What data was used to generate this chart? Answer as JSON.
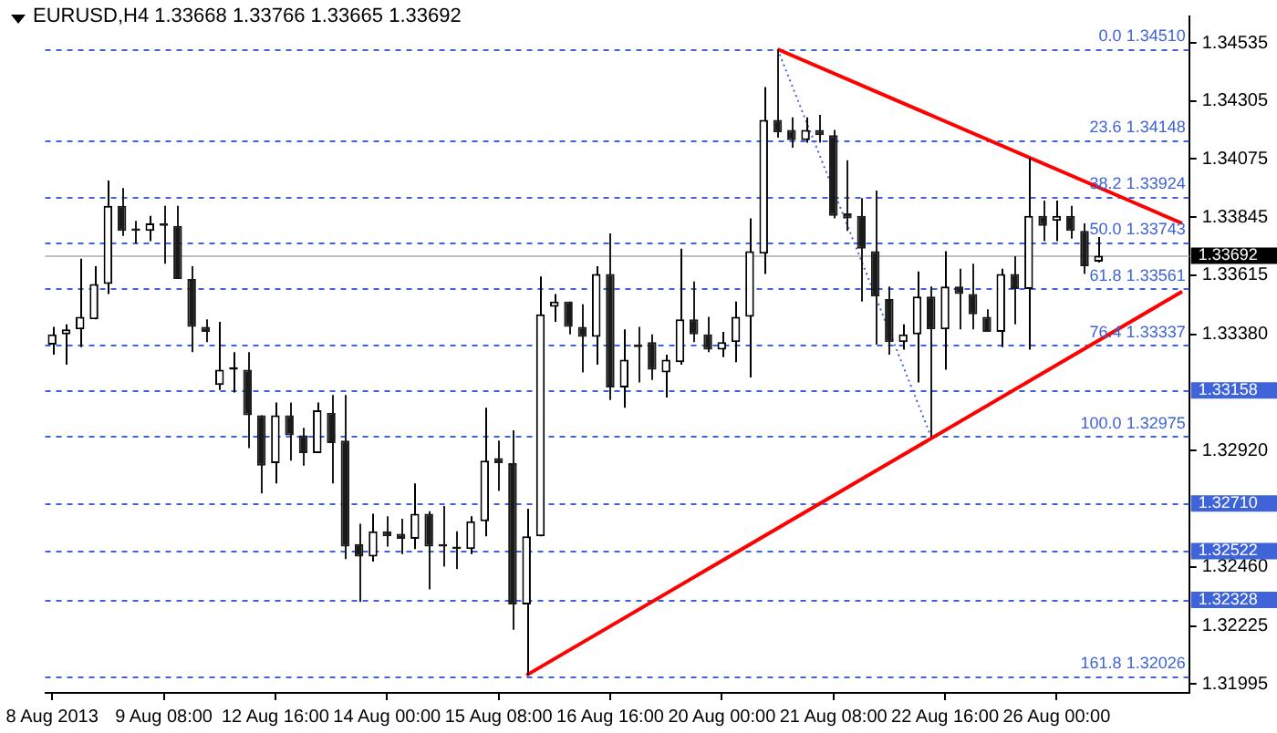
{
  "chart_data": {
    "type": "candlestick",
    "title": "EURUSD,H4 1.33668 1.33766 1.33665 1.33692",
    "marker": "none",
    "colors": [
      "#000000",
      "#000000",
      "#000000",
      "#000000",
      "#000000",
      "#1a1a1a",
      "#1a1a1a",
      "#000000",
      "#1a1a1a",
      "#1a1a1a",
      "#1a1a1a",
      "#1a1a1a",
      "#000000",
      "#000000",
      "#1a1a1a",
      "#1a1a1a",
      "#000000",
      "#1a1a1a",
      "#1a1a1a",
      "#000000",
      "#1a1a1a",
      "#1a1a1a",
      "#1a1a1a",
      "#000000",
      "#1a1a1a",
      "#1a1a1a",
      "#000000",
      "#1a1a1a",
      "#1a1a1a",
      "#1a1a1a",
      "#000000",
      "#000000",
      "#1a1a1a",
      "#1a1a1a",
      "#000000",
      "#000000",
      "#000000",
      "#1a1a1a",
      "#1a1a1a",
      "#000000",
      "#1a1a1a",
      "#000000",
      "#1a1a1a",
      "#1a1a1a",
      "#000000",
      "#000000",
      "#1a1a1a",
      "#1a1a1a",
      "#000000",
      "#000000",
      "#000000",
      "#000000",
      "#1a1a1a",
      "#1a1a1a",
      "#000000",
      "#1a1a1a",
      "#1a1a1a",
      "#1a1a1a",
      "#1a1a1a",
      "#1a1a1a",
      "#1a1a1a",
      "#000000",
      "#000000",
      "#1a1a1a",
      "#000000",
      "#1a1a1a",
      "#1a1a1a",
      "#1a1a1a",
      "#000000",
      "#1a1a1a",
      "#000000",
      "#1a1a1a",
      "#000000",
      "#1a1a1a",
      "#1a1a1a",
      "#000000",
      null,
      null,
      null,
      null,
      null,
      null
    ],
    "categories": [
      "8 Aug 2013",
      null,
      null,
      null,
      null,
      null,
      null,
      null,
      "9 Aug 08:00",
      null,
      null,
      null,
      null,
      null,
      null,
      null,
      "12 Aug 16:00",
      null,
      null,
      null,
      null,
      null,
      null,
      null,
      "14 Aug 00:00",
      null,
      null,
      null,
      null,
      null,
      null,
      null,
      "15 Aug 08:00",
      null,
      null,
      null,
      null,
      null,
      null,
      null,
      "16 Aug 16:00",
      null,
      null,
      null,
      null,
      null,
      null,
      null,
      "20 Aug 00:00",
      null,
      null,
      null,
      null,
      null,
      null,
      null,
      "21 Aug 08:00",
      null,
      null,
      null,
      null,
      null,
      null,
      null,
      "22 Aug 16:00",
      null,
      null,
      null,
      null,
      null,
      null,
      null,
      "26 Aug 00:00",
      null,
      null,
      null,
      null,
      null,
      null,
      null,
      null,
      null
    ],
    "ohlc": [
      [
        1.3334,
        1.3341,
        1.333,
        1.3338
      ],
      [
        1.3338,
        1.3342,
        1.3326,
        1.334
      ],
      [
        1.334,
        1.3368,
        1.3333,
        1.3345
      ],
      [
        1.3344,
        1.3365,
        1.3344,
        1.3358
      ],
      [
        1.3358,
        1.3399,
        1.3354,
        1.3389
      ],
      [
        1.3389,
        1.3396,
        1.3377,
        1.3379
      ],
      [
        1.338,
        1.3383,
        1.3374,
        1.3379
      ],
      [
        1.3379,
        1.3385,
        1.3375,
        1.3382
      ],
      [
        1.3382,
        1.3389,
        1.3366,
        1.3381
      ],
      [
        1.3381,
        1.3389,
        1.336,
        1.336
      ],
      [
        1.336,
        1.3365,
        1.3331,
        1.3341
      ],
      [
        1.3341,
        1.3344,
        1.3335,
        1.3339
      ],
      [
        1.3318,
        1.3343,
        1.3316,
        1.3324
      ],
      [
        1.3324,
        1.3331,
        1.3315,
        1.3325
      ],
      [
        1.3324,
        1.3331,
        1.3293,
        1.3306
      ],
      [
        1.3306,
        1.3306,
        1.3275,
        1.3286
      ],
      [
        1.3287,
        1.3311,
        1.3279,
        1.3306
      ],
      [
        1.3306,
        1.3311,
        1.3288,
        1.3298
      ],
      [
        1.3298,
        1.3301,
        1.3286,
        1.3291
      ],
      [
        1.3291,
        1.3311,
        1.3291,
        1.3308
      ],
      [
        1.3307,
        1.3314,
        1.3279,
        1.3295
      ],
      [
        1.3296,
        1.3314,
        1.3249,
        1.3254
      ],
      [
        1.3255,
        1.3263,
        1.3232,
        1.325
      ],
      [
        1.325,
        1.3267,
        1.3248,
        1.326
      ],
      [
        1.326,
        1.3266,
        1.3254,
        1.3258
      ],
      [
        1.3259,
        1.3265,
        1.3251,
        1.3257
      ],
      [
        1.3257,
        1.3279,
        1.3253,
        1.3267
      ],
      [
        1.3267,
        1.3268,
        1.3237,
        1.3254
      ],
      [
        1.3255,
        1.327,
        1.3246,
        1.3254
      ],
      [
        1.3254,
        1.326,
        1.3245,
        1.3253
      ],
      [
        1.3253,
        1.3266,
        1.3251,
        1.3264
      ],
      [
        1.3264,
        1.3309,
        1.3258,
        1.3288
      ],
      [
        1.3289,
        1.3296,
        1.3276,
        1.3287
      ],
      [
        1.3287,
        1.33,
        1.3221,
        1.3231
      ],
      [
        1.3231,
        1.3269,
        1.3203,
        1.3258
      ],
      [
        1.3258,
        1.3361,
        1.3258,
        1.3346
      ],
      [
        1.3349,
        1.3354,
        1.3343,
        1.3351
      ],
      [
        1.3351,
        1.3351,
        1.3338,
        1.3341
      ],
      [
        1.3341,
        1.335,
        1.3323,
        1.3337
      ],
      [
        1.3337,
        1.3365,
        1.3326,
        1.3362
      ],
      [
        1.3362,
        1.3378,
        1.3312,
        1.3317
      ],
      [
        1.3317,
        1.334,
        1.3309,
        1.3328
      ],
      [
        1.3334,
        1.3341,
        1.3319,
        1.3333
      ],
      [
        1.3335,
        1.3338,
        1.332,
        1.3324
      ],
      [
        1.3323,
        1.333,
        1.3313,
        1.3328
      ],
      [
        1.3327,
        1.3372,
        1.3326,
        1.3344
      ],
      [
        1.3344,
        1.3359,
        1.3335,
        1.3338
      ],
      [
        1.3338,
        1.3345,
        1.3331,
        1.3332
      ],
      [
        1.3332,
        1.3339,
        1.3329,
        1.3335
      ],
      [
        1.3335,
        1.3351,
        1.3327,
        1.3345
      ],
      [
        1.3345,
        1.3384,
        1.3321,
        1.3371
      ],
      [
        1.337,
        1.3436,
        1.3362,
        1.3423
      ],
      [
        1.3423,
        1.3451,
        1.3416,
        1.3418
      ],
      [
        1.3419,
        1.3424,
        1.3412,
        1.3415
      ],
      [
        1.3415,
        1.3424,
        1.3414,
        1.3419
      ],
      [
        1.3419,
        1.3425,
        1.3414,
        1.3417
      ],
      [
        1.3417,
        1.3419,
        1.3384,
        1.3385
      ],
      [
        1.3386,
        1.3407,
        1.3379,
        1.3384
      ],
      [
        1.3385,
        1.3392,
        1.3351,
        1.3372
      ],
      [
        1.3371,
        1.3395,
        1.3334,
        1.3353
      ],
      [
        1.3352,
        1.3357,
        1.333,
        1.3335
      ],
      [
        1.3335,
        1.3342,
        1.3332,
        1.3338
      ],
      [
        1.3338,
        1.3363,
        1.3319,
        1.3353
      ],
      [
        1.3353,
        1.3357,
        1.32975,
        1.334
      ],
      [
        1.334,
        1.3371,
        1.3324,
        1.3357
      ],
      [
        1.3357,
        1.3364,
        1.334,
        1.3354
      ],
      [
        1.3354,
        1.3366,
        1.334,
        1.3346
      ],
      [
        1.3345,
        1.3348,
        1.3339,
        1.3339
      ],
      [
        1.3339,
        1.3364,
        1.3333,
        1.3362
      ],
      [
        1.3362,
        1.3369,
        1.3342,
        1.3356
      ],
      [
        1.3356,
        1.3408,
        1.3332,
        1.3385
      ],
      [
        1.3385,
        1.3391,
        1.3375,
        1.3381
      ],
      [
        1.3383,
        1.3391,
        1.3375,
        1.3385
      ],
      [
        1.3385,
        1.3389,
        1.3376,
        1.3379
      ],
      [
        1.3379,
        1.3382,
        1.3362,
        1.3365
      ],
      [
        1.33668,
        1.33766,
        1.33665,
        1.33692
      ],
      null,
      null,
      null,
      null,
      null,
      null
    ],
    "series": [
      {
        "type": "line",
        "color": "#ff0000",
        "line_style": "solid",
        "values": [
          null,
          null,
          null,
          null,
          null,
          null,
          null,
          null,
          null,
          null,
          null,
          null,
          null,
          null,
          null,
          null,
          null,
          null,
          null,
          null,
          null,
          null,
          null,
          null,
          null,
          null,
          null,
          null,
          null,
          null,
          null,
          null,
          null,
          null,
          null,
          null,
          null,
          null,
          null,
          null,
          null,
          null,
          null,
          null,
          null,
          null,
          null,
          null,
          null,
          null,
          null,
          null,
          1.3451,
          null,
          null,
          null,
          null,
          null,
          null,
          null,
          null,
          null,
          null,
          null,
          null,
          null,
          null,
          null,
          null,
          null,
          null,
          null,
          null,
          null,
          null,
          null,
          null,
          null,
          null,
          null,
          null,
          1.3382
        ]
      },
      {
        "type": "line",
        "color": "#ff0000",
        "line_style": "solid",
        "values": [
          null,
          null,
          null,
          null,
          null,
          null,
          null,
          null,
          null,
          null,
          null,
          null,
          null,
          null,
          null,
          null,
          null,
          null,
          null,
          null,
          null,
          null,
          null,
          null,
          null,
          null,
          null,
          null,
          null,
          null,
          null,
          null,
          null,
          null,
          1.3203,
          null,
          null,
          null,
          null,
          null,
          null,
          null,
          null,
          null,
          null,
          null,
          null,
          null,
          null,
          null,
          null,
          null,
          null,
          null,
          null,
          null,
          null,
          null,
          null,
          null,
          null,
          null,
          null,
          null,
          null,
          null,
          null,
          null,
          null,
          null,
          null,
          null,
          null,
          null,
          null,
          null,
          null,
          null,
          null,
          null,
          null,
          1.3355
        ]
      },
      {
        "type": "line",
        "color": "#3f63d8",
        "line_style": "dotted",
        "values": [
          null,
          null,
          null,
          null,
          null,
          null,
          null,
          null,
          null,
          null,
          null,
          null,
          null,
          null,
          null,
          null,
          null,
          null,
          null,
          null,
          null,
          null,
          null,
          null,
          null,
          null,
          null,
          null,
          null,
          null,
          null,
          null,
          null,
          null,
          null,
          null,
          null,
          null,
          null,
          null,
          null,
          null,
          null,
          null,
          null,
          null,
          null,
          null,
          null,
          null,
          null,
          null,
          1.3451,
          null,
          null,
          null,
          null,
          null,
          null,
          null,
          null,
          null,
          null,
          1.32975,
          null,
          null,
          null,
          null,
          null,
          null,
          null,
          null,
          null,
          null,
          null,
          null,
          null,
          null,
          null,
          null,
          null,
          null
        ]
      }
    ],
    "ylim": [
      1.3196,
      1.3464
    ],
    "yticks": [
      1.31995,
      1.32225,
      {
        "value": 1.3246,
        "label": "1.32460"
      },
      {
        "value": 1.3292,
        "label": "1.32920"
      },
      {
        "value": 1.3338,
        "label": "1.33380"
      },
      1.33615,
      1.33845,
      1.34075,
      1.34305,
      1.34535
    ],
    "ref_lines": [
      {
        "axis": "y",
        "value": 1.3451,
        "label": "0.0 1.34510",
        "color": "#3f63d8",
        "line_style": "dashed"
      },
      {
        "axis": "y",
        "value": 1.34148,
        "label": "23.6 1.34148",
        "color": "#3f63d8",
        "line_style": "dashed"
      },
      {
        "axis": "y",
        "value": 1.33924,
        "label": "38.2 1.33924",
        "color": "#3f63d8",
        "line_style": "dashed"
      },
      {
        "axis": "y",
        "value": 1.33743,
        "label": "50.0 1.33743",
        "color": "#3f63d8",
        "line_style": "dashed"
      },
      {
        "axis": "y",
        "value": 1.33561,
        "label": "61.8 1.33561",
        "color": "#3f63d8",
        "line_style": "dashed"
      },
      {
        "axis": "y",
        "value": 1.33337,
        "label": "76.4 1.33337",
        "color": "#3f63d8",
        "line_style": "dashed"
      },
      {
        "axis": "y",
        "value": 1.32975,
        "label": "100.0 1.32975",
        "color": "#3f63d8",
        "line_style": "dashed"
      },
      {
        "axis": "y",
        "value": 1.32026,
        "label": "161.8 1.32026",
        "color": "#3f63d8",
        "line_style": "dashed"
      },
      {
        "axis": "y",
        "value": 1.33158,
        "label": "1.33158",
        "color": "#3f63d8",
        "line_style": "dashed"
      },
      {
        "axis": "y",
        "value": 1.3271,
        "label": "1.32710",
        "color": "#3f63d8",
        "line_style": "dashed"
      },
      {
        "axis": "y",
        "value": 1.32522,
        "label": "1.32522",
        "color": "#3f63d8",
        "line_style": "dashed"
      },
      {
        "axis": "y",
        "value": 1.32328,
        "label": "1.32328",
        "color": "#3f63d8",
        "line_style": "dashed"
      },
      {
        "axis": "y",
        "value": 1.33692,
        "label": "1.33692",
        "color": "#c0c0c0",
        "line_style": "solid"
      }
    ]
  }
}
